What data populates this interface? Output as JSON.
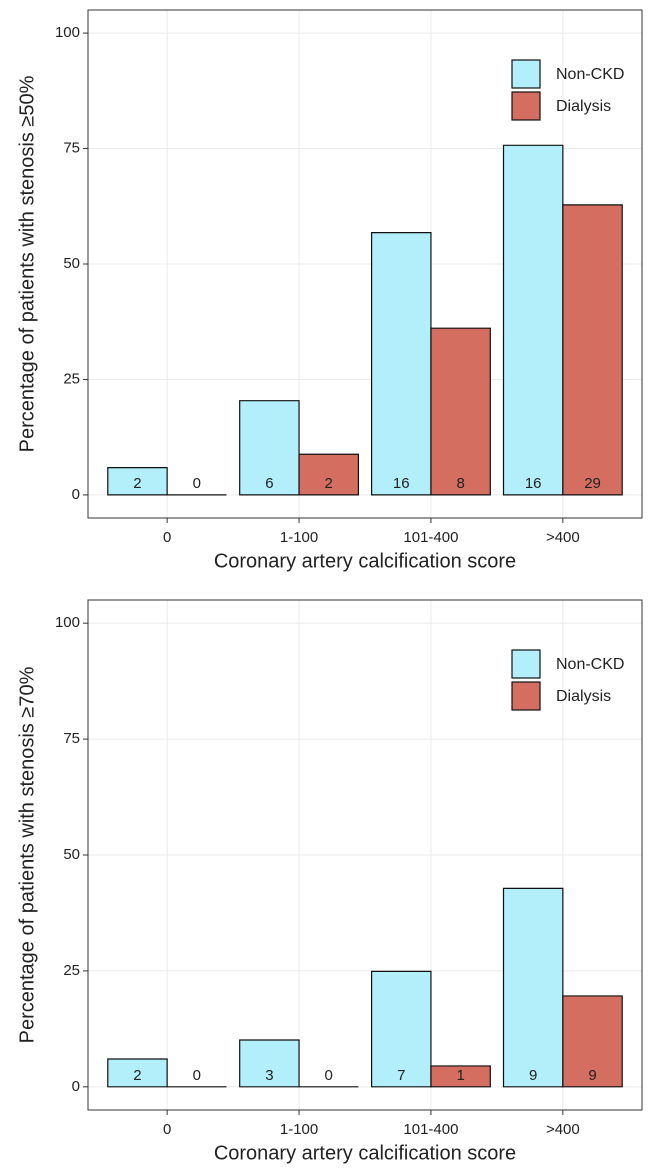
{
  "chart_data": [
    {
      "type": "bar",
      "y_label": "Percentage of patients with stenosis ≥50%",
      "x_label": "Coronary artery calcification score",
      "categories": [
        "0",
        "1-100",
        "101-400",
        ">400"
      ],
      "series": [
        {
          "name": "Non-CKD",
          "color": "#b3eefb",
          "values": [
            5.9,
            20.4,
            56.8,
            75.7
          ],
          "counts": [
            2,
            6,
            16,
            16
          ]
        },
        {
          "name": "Dialysis",
          "color": "#d46e60",
          "values": [
            0,
            8.8,
            36.1,
            62.8
          ],
          "counts": [
            0,
            2,
            8,
            29
          ]
        }
      ],
      "ylim": [
        -5,
        105
      ],
      "yticks": [
        0,
        25,
        50,
        75,
        100
      ],
      "grid": true,
      "legend": "top-right"
    },
    {
      "type": "bar",
      "y_label": "Percentage of patients with stenosis ≥70%",
      "x_label": "Coronary artery calcification score",
      "categories": [
        "0",
        "1-100",
        "101-400",
        ">400"
      ],
      "series": [
        {
          "name": "Non-CKD",
          "color": "#b3eefb",
          "values": [
            6.0,
            10.1,
            24.9,
            42.8
          ],
          "counts": [
            2,
            3,
            7,
            9
          ]
        },
        {
          "name": "Dialysis",
          "color": "#d46e60",
          "values": [
            0,
            0,
            4.5,
            19.6
          ],
          "counts": [
            0,
            0,
            1,
            9
          ]
        }
      ],
      "ylim": [
        -5,
        105
      ],
      "yticks": [
        0,
        25,
        50,
        75,
        100
      ],
      "grid": true,
      "legend": "top-right"
    }
  ]
}
